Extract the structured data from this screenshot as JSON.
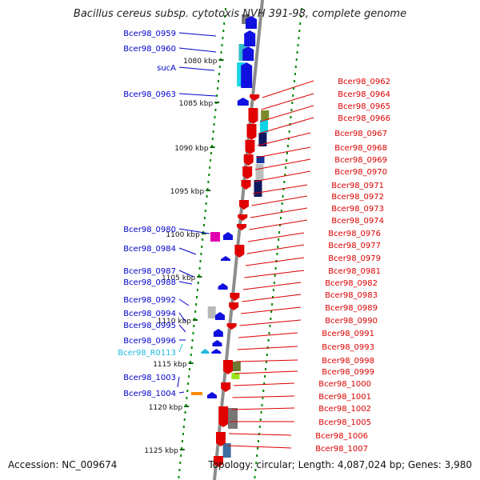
{
  "title": "Bacillus cereus subsp. cytotoxis NVH 391-98, complete genome",
  "accession": "Accession: NC_009674",
  "topology": "Topology: circular; Length: 4,087,024 bp; Genes: 3,980",
  "colors": {
    "forward_label": "#0000cc",
    "reverse_label": "#dd0000",
    "rna_label": "#22b8dd",
    "backbone": "#8c8c8c",
    "dots": "#008800"
  },
  "kbp_ticks": [
    "1080 kbp",
    "1085 kbp",
    "1090 kbp",
    "1095 kbp",
    "1100 kbp",
    "1105 kbp",
    "1110 kbp",
    "1115 kbp",
    "1120 kbp",
    "1125 kbp"
  ],
  "left_labels": [
    {
      "text": "Bcer98_0959",
      "type": "forward"
    },
    {
      "text": "Bcer98_0960",
      "type": "forward"
    },
    {
      "text": "sucA",
      "type": "forward"
    },
    {
      "text": "Bcer98_0963",
      "type": "forward"
    },
    {
      "text": "Bcer98_0980",
      "type": "forward"
    },
    {
      "text": "Bcer98_0984",
      "type": "forward"
    },
    {
      "text": "Bcer98_0987",
      "type": "forward"
    },
    {
      "text": "Bcer98_0988",
      "type": "forward"
    },
    {
      "text": "Bcer98_0992",
      "type": "forward"
    },
    {
      "text": "Bcer98_0994",
      "type": "forward"
    },
    {
      "text": "Bcer98_0995",
      "type": "forward"
    },
    {
      "text": "Bcer98_0996",
      "type": "forward"
    },
    {
      "text": "Bcer98_R0113",
      "type": "rna"
    },
    {
      "text": "Bcer98_1003",
      "type": "forward"
    },
    {
      "text": "Bcer98_1004",
      "type": "forward"
    }
  ],
  "right_labels": [
    "Bcer98_0962",
    "Bcer98_0964",
    "Bcer98_0965",
    "Bcer98_0966",
    "Bcer98_0967",
    "Bcer98_0968",
    "Bcer98_0969",
    "Bcer98_0970",
    "Bcer98_0971",
    "Bcer98_0972",
    "Bcer98_0973",
    "Bcer98_0974",
    "Bcer98_0976",
    "Bcer98_0977",
    "Bcer98_0979",
    "Bcer98_0981",
    "Bcer98_0982",
    "Bcer98_0983",
    "Bcer98_0989",
    "Bcer98_0990",
    "Bcer98_0991",
    "Bcer98_0993",
    "Bcer98_0998",
    "Bcer98_0999",
    "Bcer98_1000",
    "Bcer98_1001",
    "Bcer98_1002",
    "Bcer98_1005",
    "Bcer98_1006",
    "Bcer98_1007"
  ]
}
